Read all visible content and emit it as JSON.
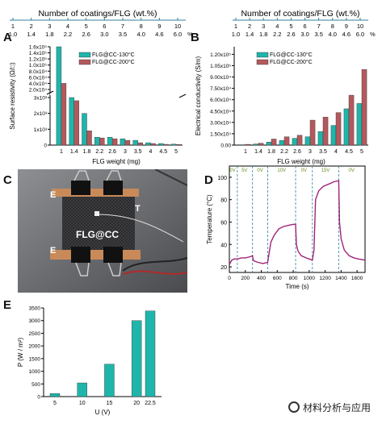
{
  "colors": {
    "teal": "#1fb5ab",
    "red": "#b3595d",
    "purple": "#a0237a",
    "green": "#6b8e23",
    "grid": "#2f7f9f"
  },
  "panels": {
    "A": "A",
    "B": "B",
    "C": "C",
    "D": "D",
    "E": "E"
  },
  "top_axis": {
    "title": "Number of coatings/FLG (wt.%)",
    "row1": [
      "1",
      "2",
      "3",
      "4",
      "5",
      "6",
      "7",
      "8",
      "9",
      "10"
    ],
    "row2": [
      "1.0",
      "1.4",
      "1.8",
      "2.2",
      "2.6",
      "3.0",
      "3.5",
      "4.0",
      "4.6",
      "6.0"
    ],
    "unit": "%"
  },
  "chart_data": [
    {
      "panel": "A",
      "type": "bar",
      "ylabel": "Surface resistivity (Ω/□)",
      "xlabel": "FLG weight (mg)",
      "xtick_labels": [
        "1",
        "1.4",
        "1.8",
        "2.2",
        "2.6",
        "3",
        "3.5",
        "4",
        "4.5",
        "5"
      ],
      "legend": [
        "FLG@CC-130°C",
        "FLG@CC-200°C"
      ],
      "ytick_upper": [
        "1.6x10⁵",
        "1.4x10⁵",
        "1.2x10⁵",
        "1.0x10⁵",
        "8.0x10⁴",
        "6.0x10⁴",
        "4.0x10⁴",
        "2.0x10⁴"
      ],
      "ytick_lower": [
        "3x10³",
        "2x10³",
        "1x10³",
        "0"
      ],
      "series": [
        {
          "name": "FLG@CC-130°C",
          "values": [
            160000,
            3000,
            2000,
            500,
            500,
            400,
            300,
            150,
            100,
            60
          ]
        },
        {
          "name": "FLG@CC-200°C",
          "values": [
            40000,
            2800,
            900,
            450,
            400,
            300,
            150,
            100,
            50,
            40
          ]
        }
      ]
    },
    {
      "panel": "B",
      "type": "bar",
      "ylabel": "Electrical conductivity (S/m)",
      "xlabel": "FLG weight (mg)",
      "xtick_labels": [
        "1",
        "1.4",
        "1.8",
        "2.2",
        "2.6",
        "3",
        "3.5",
        "4",
        "4.5",
        "5"
      ],
      "legend": [
        "FLG@CC-130°C",
        "FLG@CC-200°C"
      ],
      "ytick_labels": [
        "0.00",
        "1.50x10⁴",
        "3.00x10⁴",
        "4.50x10⁴",
        "6.00x10⁴",
        "7.50x10⁴",
        "9.00x10⁴",
        "1.05x10⁵",
        "1.20x10⁵"
      ],
      "ylim": [
        0,
        130000
      ],
      "series": [
        {
          "name": "FLG@CC-130°C",
          "values": [
            500,
            1500,
            4000,
            6000,
            9000,
            11000,
            18000,
            26000,
            48000,
            55000
          ]
        },
        {
          "name": "FLG@CC-200°C",
          "values": [
            1000,
            2500,
            8000,
            11000,
            13000,
            33000,
            37000,
            43000,
            66000,
            100000
          ]
        }
      ]
    },
    {
      "panel": "D",
      "type": "line",
      "xlabel": "Time (s)",
      "ylabel": "Temperature (°C)",
      "xtick_labels": [
        "0",
        "200",
        "400",
        "600",
        "800",
        "1000",
        "1200",
        "1400",
        "1600"
      ],
      "ytick_labels": [
        "20",
        "40",
        "60",
        "80",
        "100"
      ],
      "xlim": [
        0,
        1700
      ],
      "ylim": [
        15,
        110
      ],
      "voltage_labels": [
        "0V",
        "5V",
        "0V",
        "10V",
        "0V",
        "15V",
        "0V"
      ],
      "x": [
        0,
        30,
        60,
        100,
        150,
        200,
        260,
        290,
        300,
        320,
        360,
        420,
        480,
        520,
        560,
        620,
        680,
        740,
        800,
        830,
        840,
        860,
        900,
        960,
        1000,
        1040,
        1060,
        1080,
        1120,
        1180,
        1250,
        1310,
        1370,
        1380,
        1400,
        1440,
        1500,
        1560,
        1620,
        1700
      ],
      "y": [
        22,
        26,
        27,
        27,
        28,
        28,
        29,
        30,
        26,
        25,
        24,
        23,
        24,
        42,
        48,
        54,
        56,
        57,
        58,
        58,
        40,
        34,
        30,
        28,
        27,
        26,
        35,
        80,
        88,
        92,
        94,
        96,
        97,
        60,
        45,
        35,
        30,
        28,
        27,
        26
      ]
    },
    {
      "panel": "E",
      "type": "bar",
      "xlabel": "U (V)",
      "ylabel": "P (W / m²)",
      "categories": [
        "5",
        "10",
        "15",
        "20",
        "22.5"
      ],
      "values": [
        120,
        540,
        1280,
        3000,
        3380
      ],
      "ytick_labels": [
        "0",
        "500",
        "1000",
        "1500",
        "2000",
        "2500",
        "3000",
        "3500"
      ],
      "ylim": [
        0,
        3500
      ]
    }
  ],
  "photo": {
    "label_E_top": "E",
    "label_T": "T",
    "label_center": "FLG@CC",
    "label_E_bottom": "E"
  },
  "watermark": {
    "text": "材料分析与应用"
  }
}
